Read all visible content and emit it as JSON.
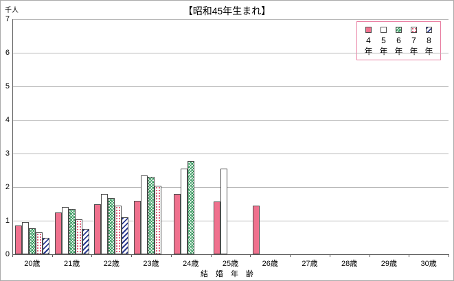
{
  "chart_data": {
    "type": "bar",
    "title": "【昭和45年生まれ】",
    "unit_label": "千人",
    "xlabel": "結　婚　年　齢",
    "ylim": [
      0,
      7
    ],
    "yticks": [
      0,
      1,
      2,
      3,
      4,
      5,
      6,
      7
    ],
    "categories": [
      "20歳",
      "21歳",
      "22歳",
      "23歳",
      "24歳",
      "25歳",
      "26歳",
      "27歳",
      "28歳",
      "29歳",
      "30歳"
    ],
    "series": [
      {
        "name": "4年",
        "pattern": "solid",
        "color": "#f0718e",
        "values": [
          0.85,
          1.25,
          1.5,
          1.6,
          1.8,
          1.58,
          1.45,
          null,
          null,
          null,
          null
        ]
      },
      {
        "name": "5年",
        "pattern": "plain",
        "color": "#ffffff",
        "values": [
          0.95,
          1.4,
          1.8,
          2.35,
          2.55,
          2.55,
          null,
          null,
          null,
          null,
          null
        ]
      },
      {
        "name": "6年",
        "pattern": "crosshatch",
        "color": "#2e9658",
        "values": [
          0.78,
          1.35,
          1.68,
          2.3,
          2.78,
          null,
          null,
          null,
          null,
          null,
          null
        ]
      },
      {
        "name": "7年",
        "pattern": "dots",
        "color": "#e04868",
        "values": [
          0.65,
          1.05,
          1.45,
          2.05,
          null,
          null,
          null,
          null,
          null,
          null,
          null
        ]
      },
      {
        "name": "8年",
        "pattern": "diagonal",
        "color": "#2b3a8f",
        "values": [
          0.5,
          0.75,
          1.1,
          null,
          null,
          null,
          null,
          null,
          null,
          null,
          null
        ]
      }
    ],
    "legend_border_color": "#e87ca0",
    "grid": true,
    "legend_position": "top-right"
  }
}
